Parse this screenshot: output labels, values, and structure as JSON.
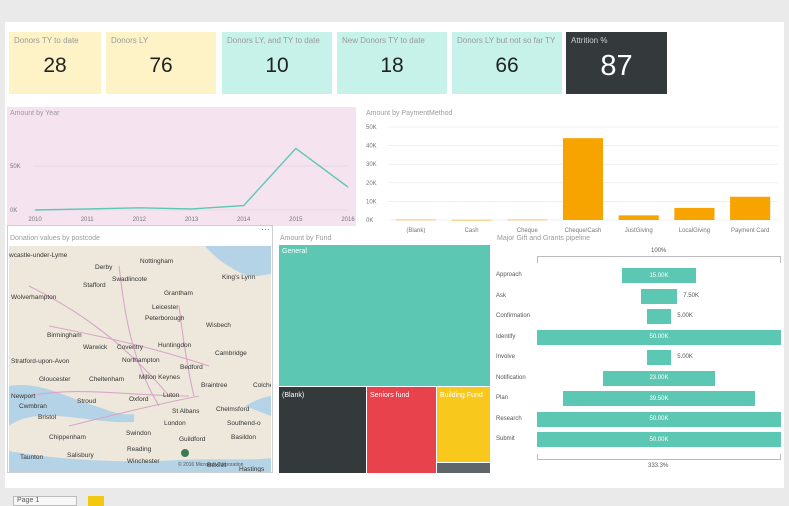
{
  "cards": [
    {
      "label": "Donors TY to date",
      "value": "28"
    },
    {
      "label": "Donors LY",
      "value": "76"
    },
    {
      "label": "Donors LY, and TY to date",
      "value": "10"
    },
    {
      "label": "New Donors TY to date",
      "value": "18"
    },
    {
      "label": "Donors LY but not so far TY",
      "value": "66"
    },
    {
      "label": "Attrition %",
      "value": "87"
    }
  ],
  "colors": {
    "accent": "#5cc8b3",
    "bar": "#f7a300",
    "dark": "#343a3c",
    "yellow_card": "#fdf3c6",
    "teal_card": "#c6f2ea",
    "pink_bg": "#f5e3f0"
  },
  "line_chart": {
    "title": "Amount by Year",
    "chart_data": {
      "type": "line",
      "x": [
        "2010",
        "2011",
        "2012",
        "2013",
        "2014",
        "2015",
        "2016"
      ],
      "values": [
        0,
        1200,
        2500,
        1200,
        5000,
        70000,
        26000
      ],
      "ylim": [
        0,
        100000
      ],
      "y_ticks": [
        "0K",
        "50K"
      ]
    }
  },
  "bar_chart": {
    "title": "Amount by PaymentMethod",
    "chart_data": {
      "type": "bar",
      "categories": [
        "(Blank)",
        "Cash",
        "Cheque",
        "Cheque/Cash",
        "JustGiving",
        "LocalGiving",
        "Payment Card"
      ],
      "values": [
        200,
        100,
        200,
        44000,
        2500,
        6500,
        12500
      ],
      "ylim": [
        0,
        50000
      ],
      "y_ticks": [
        "0K",
        "10K",
        "20K",
        "30K",
        "40K",
        "50K"
      ]
    }
  },
  "map": {
    "title": "Donation values by postcode",
    "places": [
      "wcastle-under-Lyme",
      "Derby",
      "Nottingham",
      "Swadlincote",
      "Grantham",
      "King's Lynn",
      "Stafford",
      "Leicester",
      "Wolverhampton",
      "Peterborough",
      "Wisbech",
      "Birmingham",
      "Warwick",
      "Coventry",
      "Huntingdon",
      "Cambridge",
      "Stratford-upon-Avon",
      "Northampton",
      "Bedford",
      "Gloucester",
      "Cheltenham",
      "Milton Keynes",
      "Braintree",
      "Colches",
      "Newport",
      "Cwmbran",
      "Stroud",
      "Oxford",
      "Luton",
      "St Albans",
      "Chelmsford",
      "Bristol",
      "Chippenham",
      "Swindon",
      "London",
      "Southend-o",
      "Basildon",
      "Reading",
      "Taunton",
      "Salisbury",
      "Winchester",
      "Guildford",
      "Bexhill",
      "Hastings"
    ],
    "copyright": "© 2016 Microsoft Corporation"
  },
  "treemap": {
    "title": "Amount by Fund",
    "tiles": [
      {
        "label": "General",
        "color": "#5cc8b3"
      },
      {
        "label": "(Blank)",
        "color": "#343a3c"
      },
      {
        "label": "Seniors fund",
        "color": "#e8434c"
      },
      {
        "label": "Building Fund",
        "color": "#f9c81d"
      }
    ]
  },
  "funnel": {
    "title": "Major Gift and Grants pipeline",
    "top_label": "100%",
    "bottom_label": "333.3%",
    "chart_data": {
      "type": "funnel",
      "categories": [
        "Approach",
        "Ask",
        "Confirmation",
        "Identify",
        "Involve",
        "Notification",
        "Plan",
        "Research",
        "Submit"
      ],
      "values": [
        15000,
        7500,
        5000,
        50000,
        5000,
        23000,
        39500,
        50000,
        50000
      ],
      "value_labels": [
        "15.00K",
        "7.50K",
        "5.00K",
        "50.00K",
        "5.00K",
        "23.00K",
        "39.50K",
        "50.00K",
        "50.00K"
      ],
      "max": 50000
    }
  },
  "bottom_tab": {
    "label": "Page 1"
  }
}
